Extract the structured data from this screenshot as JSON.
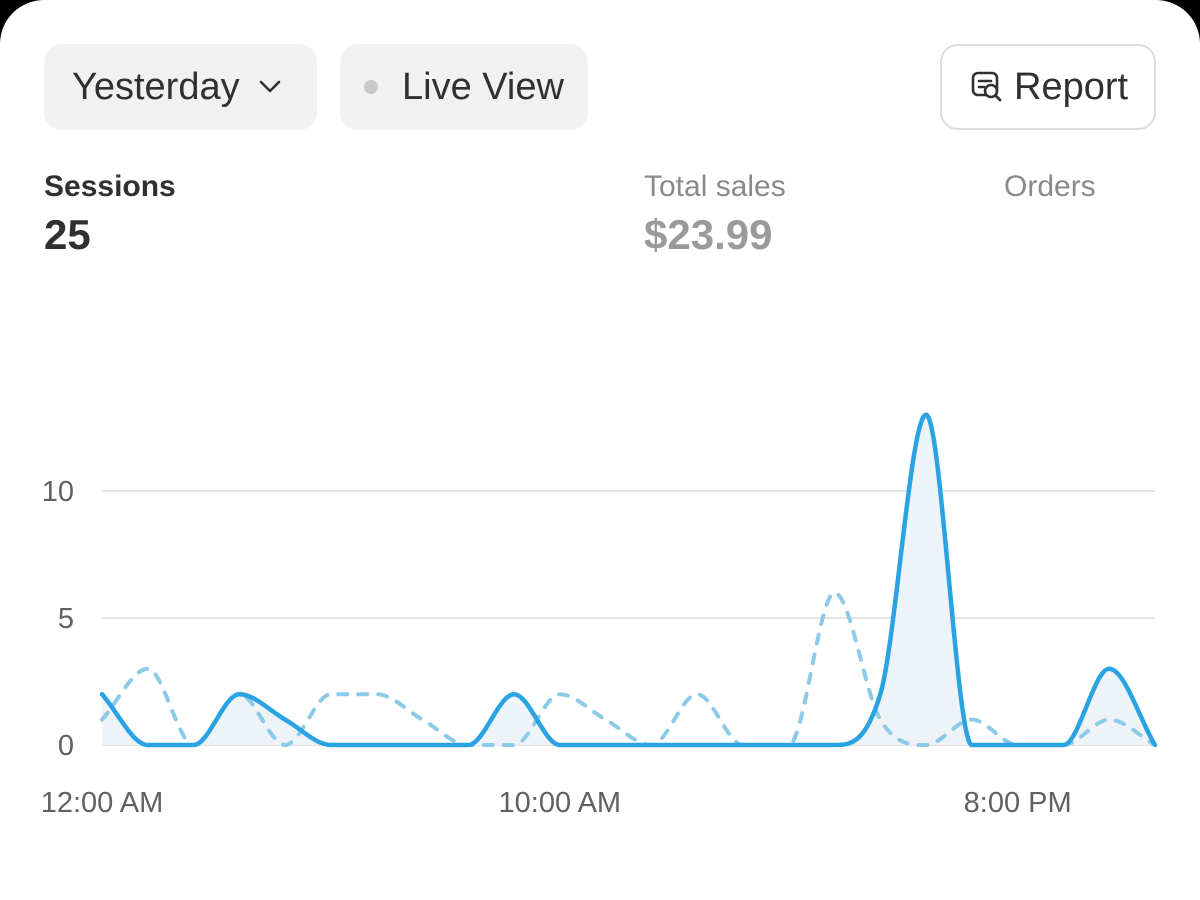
{
  "toolbar": {
    "range_label": "Yesterday",
    "live_label": "Live View",
    "report_label": "Report"
  },
  "metrics": {
    "sessions": {
      "label": "Sessions",
      "value": "25"
    },
    "total_sales": {
      "label": "Total sales",
      "value": "$23.99"
    },
    "orders": {
      "label": "Orders"
    }
  },
  "colors": {
    "accent": "#29a3e2",
    "comparison": "#8ccbe8",
    "grid": "#e3e3e3",
    "fill": "#eef3f8"
  },
  "icons": {
    "range_dropdown": "chevron-down-icon",
    "live_indicator": "status-dot-icon",
    "report": "report-search-icon"
  },
  "chart_data": {
    "type": "line",
    "x_tick_labels": [
      "12:00 AM",
      "10:00 AM",
      "8:00 PM"
    ],
    "x_tick_hours": [
      0,
      10,
      20
    ],
    "y_ticks": [
      0,
      5,
      10
    ],
    "ylim": [
      0,
      13
    ],
    "x_range_hours": [
      0,
      23
    ],
    "grid": true,
    "legend": "none",
    "series": [
      {
        "style": "solid",
        "x_hours": [
          0,
          1,
          2,
          3,
          4,
          5,
          6,
          7,
          8,
          9,
          10,
          11,
          12,
          13,
          14,
          15,
          16,
          17,
          18,
          19,
          20,
          21,
          22,
          23
        ],
        "values": [
          2,
          0,
          0,
          2,
          1,
          0,
          0,
          0,
          0,
          2,
          0,
          0,
          0,
          0,
          0,
          0,
          0,
          2,
          13,
          0,
          0,
          0,
          3,
          0
        ]
      },
      {
        "style": "dashed",
        "x_hours": [
          0,
          1,
          2,
          3,
          4,
          5,
          6,
          7,
          8,
          9,
          10,
          11,
          12,
          13,
          14,
          15,
          16,
          17,
          18,
          19,
          20,
          21,
          22,
          23
        ],
        "values": [
          1,
          3,
          0,
          2,
          0,
          2,
          2,
          1,
          0,
          0,
          2,
          1,
          0,
          2,
          0,
          0,
          6,
          1,
          0,
          1,
          0,
          0,
          1,
          0
        ]
      }
    ]
  }
}
